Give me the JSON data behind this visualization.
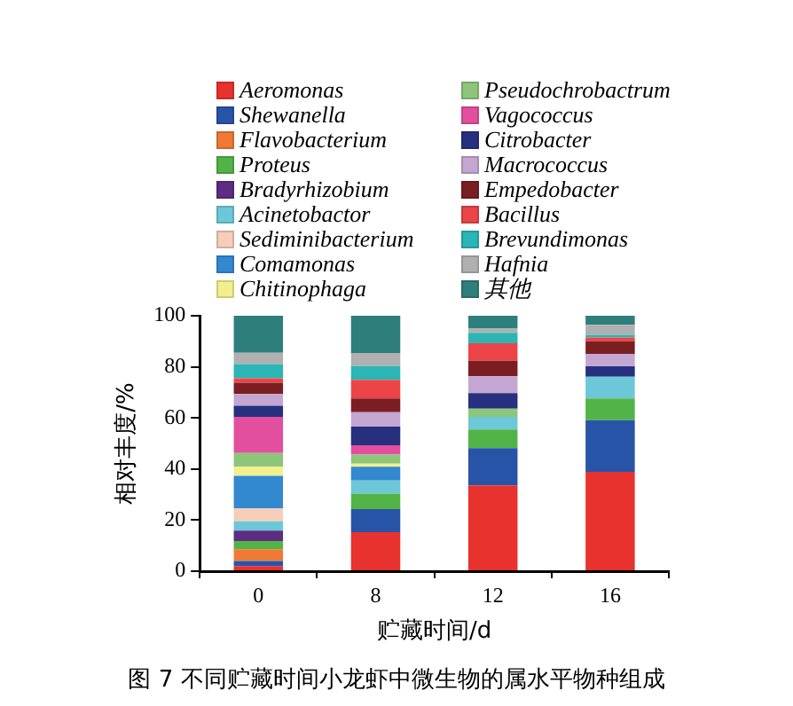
{
  "chart_data": {
    "type": "bar",
    "stacked": true,
    "xlabel": "贮藏时间/d",
    "ylabel": "相对丰度/%",
    "categories": [
      "0",
      "8",
      "12",
      "16"
    ],
    "ylim": [
      0,
      100
    ],
    "yticks": [
      0,
      20,
      40,
      60,
      80,
      100
    ],
    "grid": false,
    "legend": "top",
    "annotations": [
      "图 7 不同贮藏时间小龙虾中微生物的属水平物种组成"
    ],
    "series": [
      {
        "name": "Aeromonas",
        "color": "#e8322d",
        "values": [
          2,
          15.3,
          33.6,
          38.9
        ]
      },
      {
        "name": "Shewanella",
        "color": "#2854a8",
        "values": [
          2,
          9,
          14.6,
          20.2
        ]
      },
      {
        "name": "Flavobacterium",
        "color": "#f07a35",
        "values": [
          4.6,
          null,
          null,
          null
        ]
      },
      {
        "name": "Proteus",
        "color": "#52b447",
        "values": [
          3.2,
          6.1,
          7.3,
          8.5
        ]
      },
      {
        "name": "Bradyrhizobium",
        "color": "#5c2d83",
        "values": [
          4.1,
          null,
          null,
          null
        ]
      },
      {
        "name": "Acinetobactor",
        "color": "#6cc8d8",
        "values": [
          3.6,
          5.1,
          4.9,
          8.5
        ]
      },
      {
        "name": "Sediminibacterium",
        "color": "#f5cdb8",
        "values": [
          5.1,
          null,
          null,
          null
        ]
      },
      {
        "name": "Comamonas",
        "color": "#3389d0",
        "values": [
          12.7,
          5.4,
          null,
          null
        ]
      },
      {
        "name": "Chitinophaga",
        "color": "#f2f08c",
        "values": [
          3.6,
          1.2,
          null,
          null
        ]
      },
      {
        "name": "Pseudochrobactrum",
        "color": "#8dc67a",
        "values": [
          5.4,
          3.6,
          3.2,
          null
        ]
      },
      {
        "name": "Vagococcus",
        "color": "#e24f9e",
        "values": [
          14.1,
          3.6,
          null,
          null
        ]
      },
      {
        "name": "Citrobacter",
        "color": "#27307f",
        "values": [
          4.4,
          7.3,
          6.1,
          4.1
        ]
      },
      {
        "name": "Macrococcus",
        "color": "#c4a6d2",
        "values": [
          4.6,
          5.6,
          6.6,
          4.9
        ]
      },
      {
        "name": "Empedobacter",
        "color": "#7b1e22",
        "values": [
          4.4,
          5.4,
          6.1,
          4.9
        ]
      },
      {
        "name": "Bacillus",
        "color": "#ec4547",
        "values": [
          1.7,
          7.3,
          6.8,
          1.5
        ]
      },
      {
        "name": "Brevundimonas",
        "color": "#2bb5b5",
        "values": [
          5.6,
          5.4,
          4.1,
          1
        ]
      },
      {
        "name": "Hafnia",
        "color": "#b0b0b0",
        "values": [
          4.4,
          5.1,
          1.7,
          3.9
        ]
      },
      {
        "name": "其他",
        "color": "#2e7f7b",
        "values": [
          14.6,
          14.6,
          5.1,
          3.6
        ]
      }
    ]
  }
}
